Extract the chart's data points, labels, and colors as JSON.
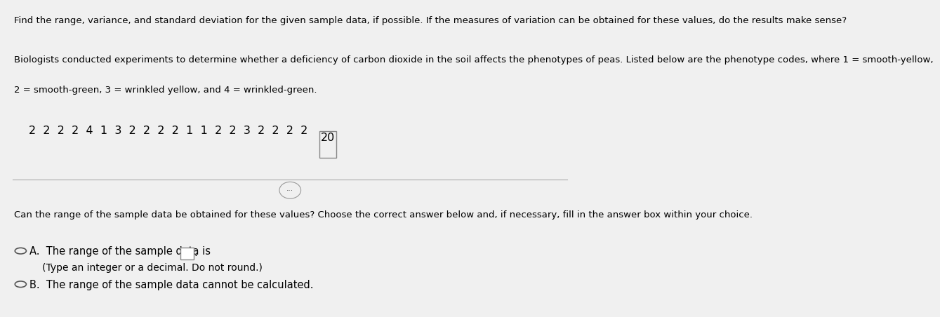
{
  "bg_color": "#f0f0f0",
  "title_line": "Find the range, variance, and standard deviation for the given sample data, if possible. If the measures of variation can be obtained for these values, do the results make sense?",
  "para_line1": "Biologists conducted experiments to determine whether a deficiency of carbon dioxide in the soil affects the phenotypes of peas. Listed below are the phenotype codes, where 1 = smooth-yellow,",
  "para_line2": "2 = smooth-green, 3 = wrinkled yellow, and 4 = wrinkled-green.",
  "data_sequence": "2  2  2  2  4  1  3  2  2  2  2  1  1  2  2  3  2  2  2  2",
  "data_last": "20",
  "divider_dots": "...",
  "question_line": "Can the range of the sample data be obtained for these values? Choose the correct answer below and, if necessary, fill in the answer box within your choice.",
  "option_a_line1": "The range of the sample data is",
  "option_a_line2": "(Type an integer or a decimal. Do not round.)",
  "option_b": "The range of the sample data cannot be calculated.",
  "label_a": "A.",
  "label_b": "B.",
  "font_size_title": 9.5,
  "font_size_body": 9.5,
  "font_size_data": 11.5,
  "font_size_option": 10.5
}
